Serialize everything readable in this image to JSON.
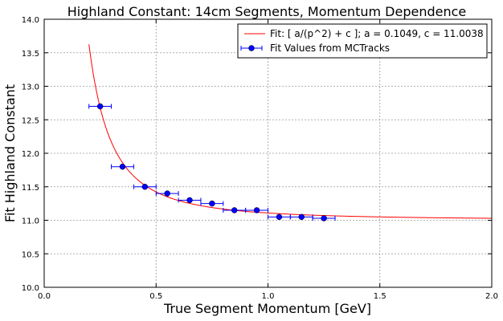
{
  "chart_data": {
    "type": "scatter",
    "title": "Highland Constant: 14cm Segments, Momentum Dependence",
    "xlabel": "True Segment Momentum [GeV]",
    "ylabel": "Fit Highland Constant",
    "xlim": [
      0.0,
      2.0
    ],
    "ylim": [
      10.0,
      14.0
    ],
    "xticks": [
      0.0,
      0.5,
      1.0,
      1.5,
      2.0
    ],
    "xtick_labels": [
      "0.0",
      "0.5",
      "1.0",
      "1.5",
      "2.0"
    ],
    "yticks": [
      10.0,
      10.5,
      11.0,
      11.5,
      12.0,
      12.5,
      13.0,
      13.5,
      14.0
    ],
    "ytick_labels": [
      "10.0",
      "10.5",
      "11.0",
      "11.5",
      "12.0",
      "12.5",
      "13.0",
      "13.5",
      "14.0"
    ],
    "grid": true,
    "legend_position": "top-right",
    "series": [
      {
        "name": "Fit: [ a/(p^2) + c ]; a = 0.1049, c = 11.0038",
        "kind": "line",
        "color": "#ff0000",
        "function": {
          "a": 0.1049,
          "c": 11.0038
        },
        "x_range": [
          0.2,
          2.0
        ]
      },
      {
        "name": "Fit Values from MCTracks",
        "kind": "errorbar",
        "color": "#0000ff",
        "x": [
          0.25,
          0.35,
          0.45,
          0.55,
          0.65,
          0.75,
          0.85,
          0.95,
          1.05,
          1.15,
          1.25
        ],
        "y": [
          12.7,
          11.8,
          11.5,
          11.4,
          11.3,
          11.25,
          11.15,
          11.15,
          11.05,
          11.05,
          11.03
        ],
        "xerr": 0.05
      }
    ]
  }
}
